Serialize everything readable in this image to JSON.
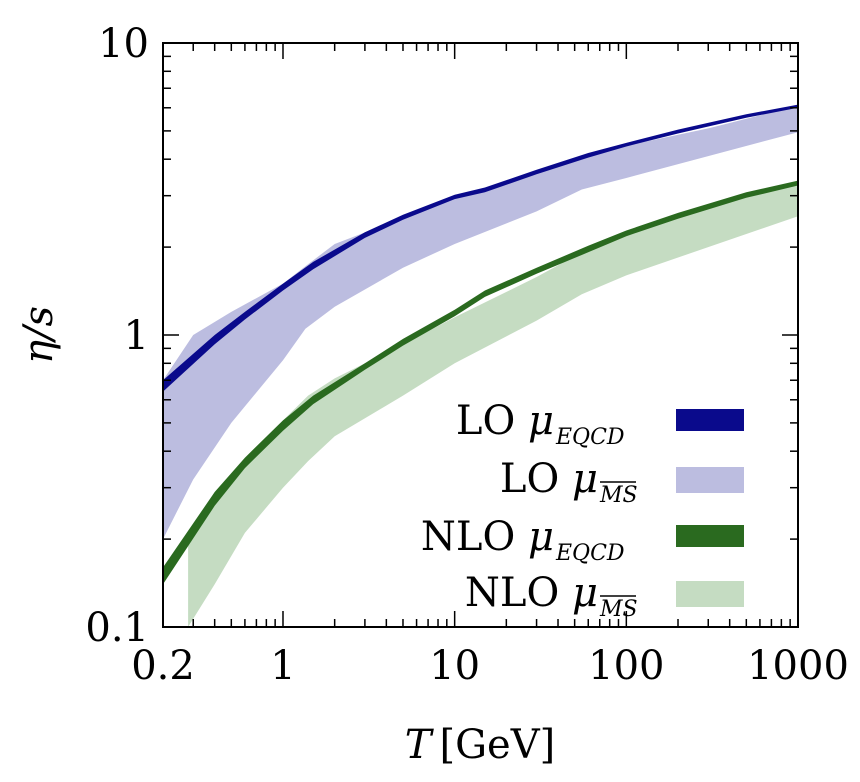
{
  "chart_data": {
    "type": "line",
    "xscale": "log",
    "yscale": "log",
    "xlim": [
      0.2,
      1000
    ],
    "ylim": [
      0.1,
      10
    ],
    "xlabel": {
      "var": "T",
      "unit": "[GeV]"
    },
    "ylabel": "η/s",
    "xticks": [
      {
        "value": 0.2,
        "label": "0.2"
      },
      {
        "value": 1,
        "label": "1"
      },
      {
        "value": 10,
        "label": "10"
      },
      {
        "value": 100,
        "label": "100"
      },
      {
        "value": 1000,
        "label": "1000"
      }
    ],
    "yticks": [
      {
        "value": 0.1,
        "label": "0.1"
      },
      {
        "value": 1,
        "label": "1"
      },
      {
        "value": 10,
        "label": "10"
      }
    ],
    "legend_position": "bottom-right",
    "series": [
      {
        "name": "LO μ_EQCD",
        "legend_main": "LO μ",
        "legend_sub": "EQCD",
        "overline": false,
        "color": "#0a0a8c",
        "x": [
          0.2,
          0.4,
          0.6,
          1,
          1.5,
          3,
          5,
          10,
          15,
          30,
          60,
          100,
          200,
          500,
          1000
        ],
        "lower": [
          0.64,
          0.93,
          1.13,
          1.42,
          1.68,
          2.15,
          2.48,
          2.92,
          3.08,
          3.55,
          4.05,
          4.42,
          4.9,
          5.55,
          6.0
        ],
        "upper": [
          0.7,
          1.0,
          1.2,
          1.5,
          1.78,
          2.25,
          2.58,
          3.02,
          3.2,
          3.68,
          4.2,
          4.55,
          5.05,
          5.7,
          6.15
        ]
      },
      {
        "name": "LO μ_MS",
        "legend_main": "LO μ",
        "legend_sub": "MS",
        "overline": true,
        "color": "#bcbde0",
        "x": [
          0.2,
          0.3,
          0.5,
          1,
          1.35,
          2,
          5,
          10,
          30,
          55,
          100,
          300,
          1000
        ],
        "lower": [
          0.2,
          0.32,
          0.5,
          0.82,
          1.05,
          1.25,
          1.7,
          2.05,
          2.65,
          3.15,
          3.45,
          4.1,
          4.95
        ],
        "upper": [
          0.7,
          1.0,
          1.2,
          1.5,
          1.72,
          2.05,
          2.52,
          2.95,
          3.55,
          4.05,
          4.45,
          5.1,
          6.1
        ]
      },
      {
        "name": "NLO μ_EQCD",
        "legend_main": "NLO μ",
        "legend_sub": "EQCD",
        "overline": false,
        "color": "#2a6a1f",
        "x": [
          0.2,
          0.4,
          0.6,
          1,
          1.5,
          3,
          5,
          10,
          15,
          30,
          60,
          100,
          200,
          500,
          1000
        ],
        "lower": [
          0.14,
          0.26,
          0.35,
          0.47,
          0.58,
          0.76,
          0.92,
          1.16,
          1.35,
          1.62,
          1.92,
          2.18,
          2.5,
          2.95,
          3.25
        ],
        "upper": [
          0.16,
          0.29,
          0.38,
          0.51,
          0.62,
          0.8,
          0.97,
          1.22,
          1.42,
          1.7,
          2.02,
          2.28,
          2.62,
          3.08,
          3.38
        ]
      },
      {
        "name": "NLO μ_MS",
        "legend_main": "NLO μ",
        "legend_sub": "MS",
        "overline": true,
        "color": "#c5dcc2",
        "x": [
          0.28,
          0.4,
          0.6,
          1,
          1.4,
          2,
          5,
          10,
          30,
          55,
          100,
          300,
          1000
        ],
        "lower": [
          0.1,
          0.14,
          0.21,
          0.3,
          0.37,
          0.45,
          0.62,
          0.8,
          1.12,
          1.38,
          1.6,
          2.0,
          2.55
        ],
        "upper": [
          0.2,
          0.29,
          0.38,
          0.51,
          0.62,
          0.71,
          0.93,
          1.15,
          1.58,
          1.92,
          2.25,
          2.75,
          3.3
        ]
      }
    ]
  }
}
